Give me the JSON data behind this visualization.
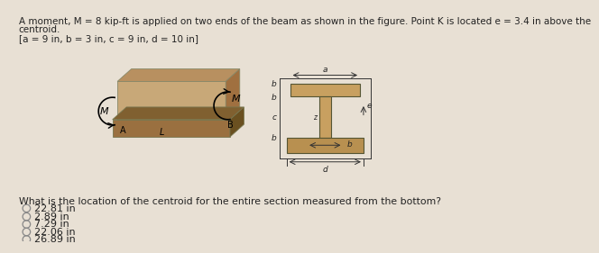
{
  "text_line1": "A moment, M = 8 kip-ft is applied on two ends of the beam as shown in the figure. Point K is located e = 3.4 in above the",
  "text_line2": "centroid.",
  "text_line3": "[a = 9 in, b = 3 in, c = 9 in, d = 10 in]",
  "question": "What is the location of the centroid for the entire section measured from the bottom?",
  "choices": [
    "22.81 in",
    "2.89 in",
    "7.29 in",
    "22.06 in",
    "26.89 in"
  ],
  "bg_color": "#e8e0d4",
  "figure_bg": "#e8e0d4",
  "beam_top_color": "#c8a060",
  "beam_front_color": "#c8a060",
  "beam_right_color": "#a07030",
  "base_color": "#9a7040",
  "base_dark": "#7a5828",
  "ibeam_top_color": "#c8a060",
  "ibeam_bot_color": "#b89050",
  "white": "#ffffff"
}
